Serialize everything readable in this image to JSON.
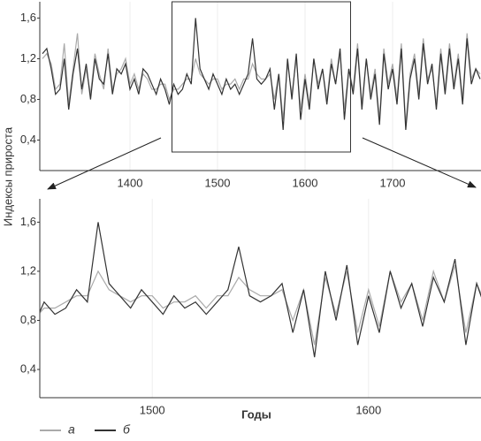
{
  "chart_data": [
    {
      "type": "line",
      "x": [
        1300,
        1305,
        1310,
        1315,
        1320,
        1325,
        1330,
        1335,
        1340,
        1345,
        1350,
        1355,
        1360,
        1365,
        1370,
        1375,
        1380,
        1385,
        1390,
        1395,
        1400,
        1405,
        1410,
        1415,
        1420,
        1425,
        1430,
        1435,
        1440,
        1445,
        1450,
        1455,
        1460,
        1465,
        1470,
        1475,
        1480,
        1485,
        1490,
        1495,
        1500,
        1505,
        1510,
        1515,
        1520,
        1525,
        1530,
        1535,
        1540,
        1545,
        1550,
        1555,
        1560,
        1565,
        1570,
        1575,
        1580,
        1585,
        1590,
        1595,
        1600,
        1605,
        1610,
        1615,
        1620,
        1625,
        1630,
        1635,
        1640,
        1645,
        1650,
        1655,
        1660,
        1665,
        1670,
        1675,
        1680,
        1685,
        1690,
        1695,
        1700,
        1705,
        1710,
        1715,
        1720,
        1725,
        1730,
        1735,
        1740,
        1745,
        1750,
        1755,
        1760,
        1765,
        1770,
        1775,
        1780,
        1785,
        1790,
        1795,
        1800
      ],
      "series": [
        {
          "name": "а",
          "color": "#aaaaaa",
          "values": [
            1.2,
            1.25,
            1.15,
            0.9,
            0.95,
            1.35,
            0.75,
            1.1,
            1.45,
            0.85,
            1.1,
            0.85,
            1.25,
            1.05,
            0.9,
            1.3,
            0.9,
            1.05,
            1.1,
            1.2,
            0.95,
            1.05,
            0.9,
            1.05,
            1.0,
            0.9,
            0.9,
            0.95,
            0.95,
            0.8,
            0.9,
            0.9,
            0.95,
            1.0,
            1.0,
            1.2,
            1.05,
            1.0,
            0.95,
            1.0,
            1.0,
            0.9,
            0.95,
            0.95,
            1.0,
            0.9,
            1.0,
            1.0,
            1.15,
            1.05,
            1.0,
            1.0,
            1.05,
            0.8,
            1.05,
            0.6,
            1.15,
            0.85,
            1.2,
            0.7,
            1.05,
            0.75,
            1.2,
            0.95,
            1.1,
            0.8,
            1.2,
            0.95,
            1.25,
            0.7,
            1.1,
            0.9,
            1.35,
            0.75,
            1.2,
            0.85,
            1.1,
            0.6,
            1.3,
            0.95,
            1.15,
            0.8,
            1.35,
            0.55,
            1.05,
            1.25,
            0.85,
            1.4,
            1.0,
            1.1,
            0.75,
            1.3,
            0.9,
            1.35,
            0.95,
            1.25,
            0.8,
            1.45,
            1.0,
            1.1,
            1.05
          ]
        },
        {
          "name": "б",
          "color": "#333333",
          "values": [
            1.25,
            1.3,
            1.1,
            0.85,
            0.9,
            1.2,
            0.7,
            1.05,
            1.3,
            0.9,
            1.15,
            0.8,
            1.2,
            1.0,
            0.95,
            1.25,
            0.85,
            1.1,
            1.05,
            1.15,
            0.9,
            1.0,
            0.85,
            1.1,
            1.05,
            0.95,
            0.85,
            1.0,
            0.9,
            0.75,
            0.95,
            0.85,
            0.9,
            1.05,
            0.95,
            1.6,
            1.1,
            1.0,
            0.9,
            1.05,
            0.95,
            0.85,
            1.0,
            0.9,
            0.95,
            0.85,
            0.95,
            1.05,
            1.4,
            1.0,
            0.95,
            1.0,
            1.1,
            0.7,
            1.05,
            0.5,
            1.2,
            0.8,
            1.25,
            0.6,
            1.0,
            0.7,
            1.2,
            0.9,
            1.1,
            0.75,
            1.15,
            0.95,
            1.3,
            0.6,
            1.1,
            0.85,
            1.3,
            0.7,
            1.2,
            0.8,
            1.05,
            0.55,
            1.25,
            0.9,
            1.1,
            0.75,
            1.3,
            0.5,
            1.0,
            1.2,
            0.8,
            1.35,
            0.95,
            1.15,
            0.7,
            1.25,
            0.85,
            1.3,
            0.9,
            1.2,
            0.75,
            1.4,
            0.95,
            1.1,
            1.0
          ]
        }
      ],
      "xlim": [
        1297,
        1801
      ],
      "ylim": [
        0.1,
        1.76
      ],
      "xticks": [
        1400,
        1500,
        1600,
        1700
      ],
      "yticks": [
        {
          "value": 0.4,
          "label": "0,4"
        },
        {
          "value": 0.8,
          "label": "0,8"
        },
        {
          "value": 1.2,
          "label": "1,2"
        },
        {
          "value": 1.6,
          "label": "1,6"
        }
      ],
      "grid": true
    },
    {
      "type": "line",
      "xlabel": "Годы",
      "ylabel": "Индексы прироста",
      "xlim": [
        1448,
        1652
      ],
      "ylim": [
        0.17,
        1.79
      ],
      "xticks": [
        1500,
        1600
      ],
      "yticks": [
        {
          "value": 0.4,
          "label": "0,4"
        },
        {
          "value": 0.8,
          "label": "0,8"
        },
        {
          "value": 1.2,
          "label": "1,2"
        },
        {
          "value": 1.6,
          "label": "1,6"
        }
      ],
      "grid": true
    }
  ]
}
